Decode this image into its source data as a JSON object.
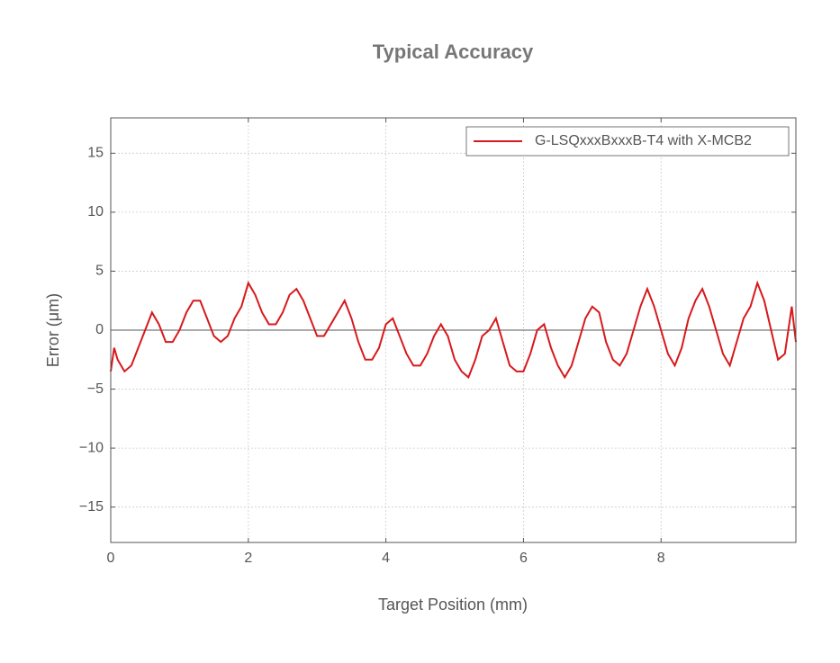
{
  "chart_data": {
    "type": "line",
    "title": "Typical Accuracy",
    "x_label": "Target Position (mm)",
    "y_label": "Error (μm)",
    "xlim": [
      0,
      9.96
    ],
    "ylim": [
      -18,
      18
    ],
    "xticks": [
      0,
      2,
      4,
      6,
      8
    ],
    "yticks": [
      {
        "value": -15,
        "label": "−15"
      },
      {
        "value": -10,
        "label": "−10"
      },
      {
        "value": -5,
        "label": "−5"
      },
      0,
      5,
      10,
      15
    ],
    "grid": true,
    "zero_line": true,
    "legend": "upper right",
    "x": [
      0,
      0.05,
      0.1,
      0.2,
      0.3,
      0.4,
      0.5,
      0.6,
      0.7,
      0.8,
      0.9,
      1.0,
      1.1,
      1.2,
      1.3,
      1.4,
      1.5,
      1.6,
      1.7,
      1.8,
      1.9,
      2.0,
      2.1,
      2.2,
      2.3,
      2.4,
      2.5,
      2.6,
      2.7,
      2.8,
      2.9,
      3.0,
      3.1,
      3.2,
      3.3,
      3.4,
      3.5,
      3.6,
      3.7,
      3.8,
      3.9,
      4.0,
      4.1,
      4.2,
      4.3,
      4.4,
      4.5,
      4.6,
      4.7,
      4.8,
      4.9,
      5.0,
      5.1,
      5.2,
      5.3,
      5.4,
      5.5,
      5.6,
      5.7,
      5.8,
      5.9,
      6.0,
      6.1,
      6.2,
      6.3,
      6.4,
      6.5,
      6.6,
      6.7,
      6.8,
      6.9,
      7.0,
      7.1,
      7.2,
      7.3,
      7.4,
      7.5,
      7.6,
      7.7,
      7.8,
      7.9,
      8.0,
      8.1,
      8.2,
      8.3,
      8.4,
      8.5,
      8.6,
      8.7,
      8.8,
      8.9,
      9.0,
      9.1,
      9.2,
      9.3,
      9.4,
      9.5,
      9.6,
      9.7,
      9.8,
      9.9,
      9.96
    ],
    "series": [
      {
        "name": "G-LSQxxxBxxxB-T4 with X-MCB2",
        "color": "#d7191c",
        "values": [
          -3.5,
          -1.5,
          -2.5,
          -3.5,
          -3,
          -1.5,
          0,
          1.5,
          0.5,
          -1,
          -1,
          0,
          1.5,
          2.5,
          2.5,
          1,
          -0.5,
          -1,
          -0.5,
          1,
          2,
          4,
          3,
          1.5,
          0.5,
          0.5,
          1.5,
          3,
          3.5,
          2.5,
          1,
          -0.5,
          -0.5,
          0.5,
          1.5,
          2.5,
          1,
          -1,
          -2.5,
          -2.5,
          -1.5,
          0.5,
          1,
          -0.5,
          -2,
          -3,
          -3,
          -2,
          -0.5,
          0.5,
          -0.5,
          -2.5,
          -3.5,
          -4,
          -2.5,
          -0.5,
          0,
          1,
          -1,
          -3,
          -3.5,
          -3.5,
          -2,
          0,
          0.5,
          -1.5,
          -3,
          -4,
          -3,
          -1,
          1,
          2,
          1.5,
          -1,
          -2.5,
          -3,
          -2,
          0,
          2,
          3.5,
          2,
          0,
          -2,
          -3,
          -1.5,
          1,
          2.5,
          3.5,
          2,
          0,
          -2,
          -3,
          -1,
          1,
          2,
          4,
          2.5,
          0,
          -2.5,
          -2,
          2,
          -1
        ]
      }
    ]
  }
}
